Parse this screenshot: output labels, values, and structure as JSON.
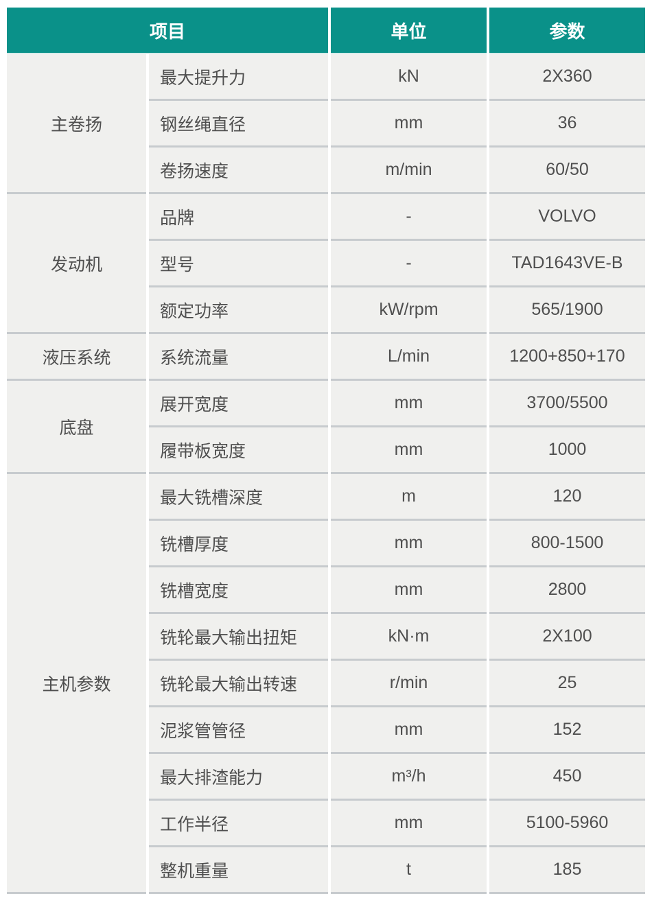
{
  "table": {
    "headers": {
      "item": "项目",
      "unit": "单位",
      "param": "参数"
    },
    "groups": [
      {
        "category": "主卷扬",
        "rows": [
          {
            "name": "最大提升力",
            "unit": "kN",
            "value": "2X360"
          },
          {
            "name": "钢丝绳直径",
            "unit": "mm",
            "value": "36"
          },
          {
            "name": "卷扬速度",
            "unit": "m/min",
            "value": "60/50"
          }
        ]
      },
      {
        "category": "发动机",
        "rows": [
          {
            "name": "品牌",
            "unit": "-",
            "value": "VOLVO"
          },
          {
            "name": "型号",
            "unit": "-",
            "value": "TAD1643VE-B"
          },
          {
            "name": "额定功率",
            "unit": "kW/rpm",
            "value": "565/1900"
          }
        ]
      },
      {
        "category": "液压系统",
        "rows": [
          {
            "name": "系统流量",
            "unit": "L/min",
            "value": "1200+850+170"
          }
        ]
      },
      {
        "category": "底盘",
        "rows": [
          {
            "name": "展开宽度",
            "unit": "mm",
            "value": "3700/5500"
          },
          {
            "name": "履带板宽度",
            "unit": "mm",
            "value": "1000"
          }
        ]
      },
      {
        "category": "主机参数",
        "rows": [
          {
            "name": "最大铣槽深度",
            "unit": "m",
            "value": "120"
          },
          {
            "name": "铣槽厚度",
            "unit": "mm",
            "value": "800-1500"
          },
          {
            "name": "铣槽宽度",
            "unit": "mm",
            "value": "2800"
          },
          {
            "name": "铣轮最大输出扭矩",
            "unit": "kN·m",
            "value": "2X100"
          },
          {
            "name": "铣轮最大输出转速",
            "unit": "r/min",
            "value": "25"
          },
          {
            "name": "泥浆管管径",
            "unit": "mm",
            "value": "152"
          },
          {
            "name": "最大排渣能力",
            "unit": "m³/h",
            "value": "450"
          },
          {
            "name": "工作半径",
            "unit": "mm",
            "value": "5100-5960"
          },
          {
            "name": "整机重量",
            "unit": "t",
            "value": "185"
          }
        ]
      }
    ],
    "colors": {
      "header_bg": "#0a9189",
      "header_text": "#ffffff",
      "cell_bg": "#f0f0ee",
      "separator": "#c7cbce",
      "body_text": "#4f4f4f"
    }
  }
}
